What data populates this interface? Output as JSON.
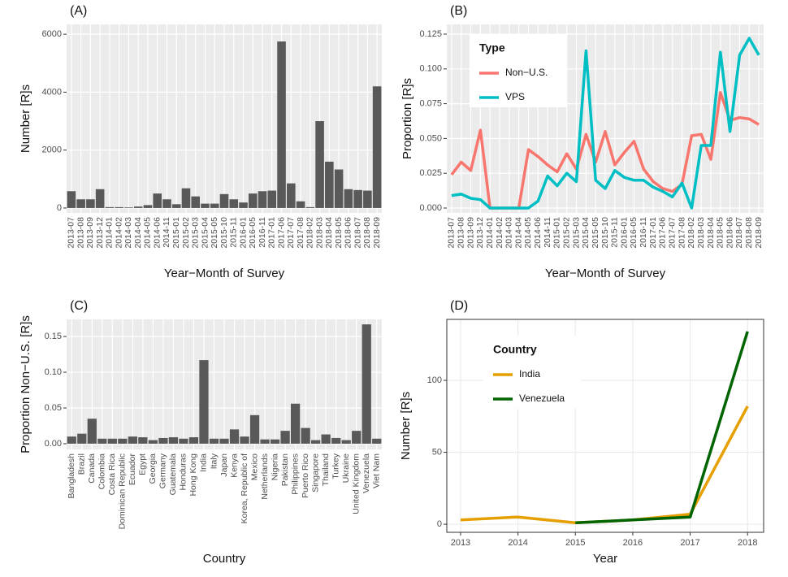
{
  "chart_data": [
    {
      "panel_label": "(A)",
      "type": "bar",
      "x_label": "Year−Month of Survey",
      "y_label": "Number [R]s",
      "categories": [
        "2013-07",
        "2013-08",
        "2013-09",
        "2013-12",
        "2014-01",
        "2014-02",
        "2014-03",
        "2014-04",
        "2014-05",
        "2014-06",
        "2014-11",
        "2015-01",
        "2015-02",
        "2015-03",
        "2015-04",
        "2015-05",
        "2015-10",
        "2015-11",
        "2016-01",
        "2016-05",
        "2016-11",
        "2017-01",
        "2017-06",
        "2017-07",
        "2017-08",
        "2018-02",
        "2018-03",
        "2018-04",
        "2018-05",
        "2018-06",
        "2018-07",
        "2018-08",
        "2018-09"
      ],
      "values": [
        580,
        300,
        300,
        650,
        30,
        30,
        20,
        50,
        100,
        500,
        300,
        130,
        680,
        400,
        150,
        150,
        480,
        300,
        190,
        500,
        580,
        600,
        5750,
        850,
        230,
        30,
        3000,
        1600,
        1330,
        650,
        620,
        600,
        4200
      ],
      "color": "#595959",
      "ylim": [
        -170,
        6340
      ],
      "yticks": [
        0,
        2000,
        4000,
        6000
      ],
      "grid": true
    },
    {
      "panel_label": "(B)",
      "type": "line",
      "x_label": "Year−Month of Survey",
      "y_label": "Proportion [R]s",
      "categories": [
        "2013-07",
        "2013-08",
        "2013-09",
        "2013-12",
        "2014-01",
        "2014-02",
        "2014-03",
        "2014-04",
        "2014-05",
        "2014-06",
        "2014-11",
        "2015-01",
        "2015-02",
        "2015-03",
        "2015-04",
        "2015-05",
        "2015-10",
        "2015-11",
        "2016-01",
        "2016-05",
        "2016-11",
        "2017-01",
        "2017-06",
        "2017-07",
        "2017-08",
        "2018-02",
        "2018-03",
        "2018-04",
        "2018-05",
        "2018-06",
        "2018-07",
        "2018-08",
        "2018-09"
      ],
      "legend_title": "Type",
      "legend": "top-left",
      "series": [
        {
          "name": "Non−U.S.",
          "color": "#f8766d",
          "values": [
            0.024,
            0.033,
            0.027,
            0.056,
            0,
            0,
            0,
            0,
            0.042,
            0.037,
            0.031,
            0.026,
            0.039,
            0.028,
            0.053,
            0.033,
            0.055,
            0.031,
            0.04,
            0.048,
            0.028,
            0.019,
            0.014,
            0.012,
            0.017,
            0.052,
            0.053,
            0.035,
            0.083,
            0.063,
            0.065,
            0.064,
            0.06
          ]
        },
        {
          "name": "VPS",
          "color": "#00bfc4",
          "values": [
            0.009,
            0.01,
            0.007,
            0.006,
            0,
            0,
            0,
            0,
            0,
            0.005,
            0.023,
            0.016,
            0.025,
            0.019,
            0.113,
            0.02,
            0.014,
            0.027,
            0.022,
            0.02,
            0.02,
            0.015,
            0.012,
            0.008,
            0.018,
            0,
            0.045,
            0.045,
            0.112,
            0.055,
            0.11,
            0.122,
            0.11
          ]
        }
      ],
      "ylim": [
        -0.0035,
        0.132
      ],
      "yticks": [
        {
          "value": 0,
          "label": "0.000"
        },
        {
          "value": 0.025,
          "label": "0.025"
        },
        {
          "value": 0.05,
          "label": "0.050"
        },
        {
          "value": 0.075,
          "label": "0.075"
        },
        {
          "value": 0.1,
          "label": "0.100"
        },
        {
          "value": 0.125,
          "label": "0.125"
        }
      ],
      "grid": true
    },
    {
      "panel_label": "(C)",
      "type": "bar",
      "x_label": "Country",
      "y_label": "Proportion Non−U.S. [R]s",
      "categories": [
        "Bangladesh",
        "Brazil",
        "Canada",
        "Colombia",
        "Costa Rica",
        "Dominican Republic",
        "Ecuador",
        "Egypt",
        "Georgia",
        "Germany",
        "Guatemala",
        "Honduras",
        "Hong Kong",
        "India",
        "Italy",
        "Japan",
        "Kenya",
        "Korea, Republic of",
        "Mexico",
        "Netherlands",
        "Nigeria",
        "Pakistan",
        "Philippines",
        "Puerto Rico",
        "Singapore",
        "Thailand",
        "Turkey",
        "Ukraine",
        "United Kingdom",
        "Venezuela",
        "Viet Nam"
      ],
      "values": [
        0.01,
        0.014,
        0.035,
        0.007,
        0.007,
        0.007,
        0.01,
        0.009,
        0.005,
        0.008,
        0.009,
        0.007,
        0.009,
        0.117,
        0.007,
        0.007,
        0.02,
        0.01,
        0.04,
        0.006,
        0.006,
        0.018,
        0.056,
        0.022,
        0.005,
        0.013,
        0.008,
        0.005,
        0.018,
        0.167,
        0.007
      ],
      "color": "#595959",
      "ylim": [
        -0.008,
        0.174
      ],
      "yticks": [
        {
          "value": 0,
          "label": "0.00"
        },
        {
          "value": 0.05,
          "label": "0.05"
        },
        {
          "value": 0.1,
          "label": "0.10"
        },
        {
          "value": 0.15,
          "label": "0.15"
        }
      ],
      "grid": true
    },
    {
      "panel_label": "(D)",
      "type": "line",
      "x_label": "Year",
      "y_label": "Number [R]s",
      "x": [
        2013,
        2014,
        2015,
        2016,
        2017,
        2018
      ],
      "legend_title": "Country",
      "legend": "top-left",
      "series": [
        {
          "name": "India",
          "color": "#e69f00",
          "values": [
            3,
            5,
            1,
            3,
            7,
            82
          ]
        },
        {
          "name": "Venezuela",
          "color": "#006400",
          "values": [
            null,
            null,
            1,
            3,
            5,
            134
          ]
        }
      ],
      "xlim": [
        2012.76,
        2018.28
      ],
      "xticks": [
        2013,
        2014,
        2015,
        2016,
        2017,
        2018
      ],
      "ylim": [
        -5.6,
        142.4
      ],
      "yticks": [
        0,
        50,
        100
      ],
      "grid": true
    }
  ]
}
